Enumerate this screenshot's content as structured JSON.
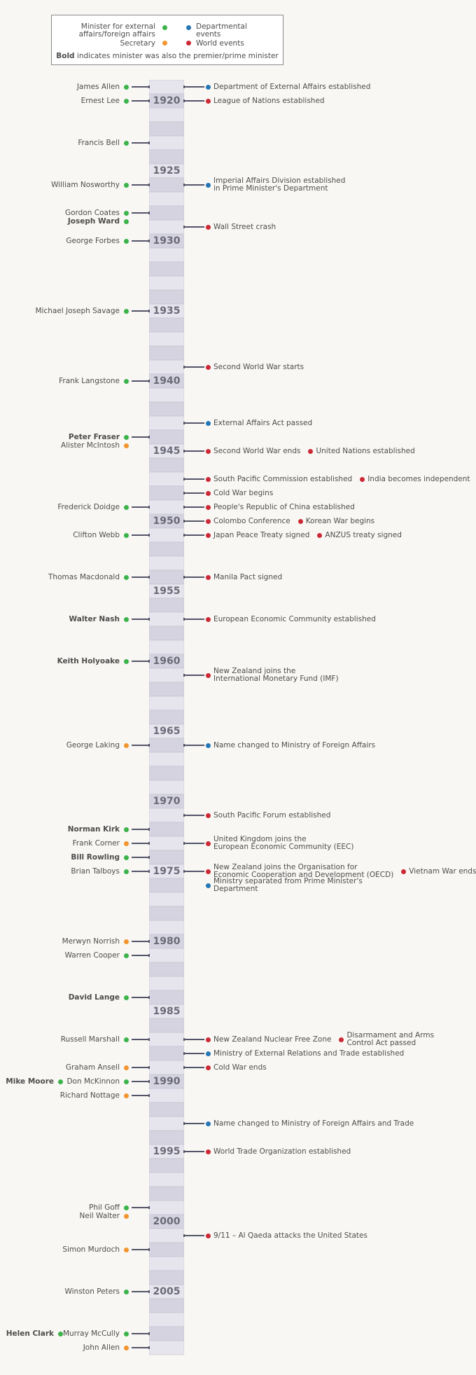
{
  "legend": {
    "minister": "Minister for external affairs/foreign affairs",
    "secretary": "Secretary",
    "departmental": "Departmental events",
    "world": "World events",
    "bold_note_bold": "Bold",
    "bold_note_rest": "indicates minister was also the premier/prime minister"
  },
  "timeline": {
    "start_year": 1919,
    "end_year": 2009,
    "year_labels": [
      "1920",
      "1925",
      "1930",
      "1935",
      "1940",
      "1945",
      "1950",
      "1955",
      "1960",
      "1965",
      "1970",
      "1975",
      "1980",
      "1985",
      "1990",
      "1995",
      "2000",
      "2005"
    ]
  },
  "people": [
    {
      "name": "James Allen",
      "year": 1919,
      "role": "minister",
      "bold": false
    },
    {
      "name": "Ernest Lee",
      "year": 1920,
      "role": "minister",
      "bold": false
    },
    {
      "name": "Francis Bell",
      "year": 1923,
      "role": "minister",
      "bold": false
    },
    {
      "name": "William Nosworthy",
      "year": 1926,
      "role": "minister",
      "bold": false
    },
    {
      "name": "Gordon Coates",
      "year": 1928,
      "role": "minister",
      "bold": false
    },
    {
      "name": "Joseph Ward",
      "year": 1928.6,
      "role": "minister",
      "bold": true
    },
    {
      "name": "George Forbes",
      "year": 1930,
      "role": "minister",
      "bold": false
    },
    {
      "name": "Michael Joseph Savage",
      "year": 1935,
      "role": "minister",
      "bold": false
    },
    {
      "name": "Frank Langstone",
      "year": 1940,
      "role": "minister",
      "bold": false
    },
    {
      "name": "Peter Fraser",
      "year": 1944,
      "role": "minister",
      "bold": true
    },
    {
      "name": "Alister McIntosh",
      "year": 1944.6,
      "role": "secretary",
      "bold": false
    },
    {
      "name": "Frederick Doidge",
      "year": 1949,
      "role": "minister",
      "bold": false
    },
    {
      "name": "Clifton Webb",
      "year": 1951,
      "role": "minister",
      "bold": false
    },
    {
      "name": "Thomas Macdonald",
      "year": 1954,
      "role": "minister",
      "bold": false
    },
    {
      "name": "Walter Nash",
      "year": 1957,
      "role": "minister",
      "bold": true
    },
    {
      "name": "Keith Holyoake",
      "year": 1960,
      "role": "minister",
      "bold": true
    },
    {
      "name": "George Laking",
      "year": 1966,
      "role": "secretary",
      "bold": false
    },
    {
      "name": "Norman Kirk",
      "year": 1972,
      "role": "minister",
      "bold": true
    },
    {
      "name": "Frank Corner",
      "year": 1973,
      "role": "secretary",
      "bold": false
    },
    {
      "name": "Bill Rowling",
      "year": 1974,
      "role": "minister",
      "bold": true
    },
    {
      "name": "Brian Talboys",
      "year": 1975,
      "role": "minister",
      "bold": false
    },
    {
      "name": "Merwyn Norrish",
      "year": 1980,
      "role": "secretary",
      "bold": false
    },
    {
      "name": "Warren Cooper",
      "year": 1981,
      "role": "minister",
      "bold": false
    },
    {
      "name": "David Lange",
      "year": 1984,
      "role": "minister",
      "bold": true
    },
    {
      "name": "Russell Marshall",
      "year": 1987,
      "role": "minister",
      "bold": false
    },
    {
      "name": "Graham Ansell",
      "year": 1989,
      "role": "secretary",
      "bold": false
    },
    {
      "name": "Don McKinnon",
      "year": 1990,
      "role": "minister",
      "bold": false
    },
    {
      "name": "Mike Moore",
      "year": 1990,
      "role": "minister",
      "bold": true,
      "outer": true
    },
    {
      "name": "Richard Nottage",
      "year": 1991,
      "role": "secretary",
      "bold": false
    },
    {
      "name": "Phil Goff",
      "year": 1999,
      "role": "minister",
      "bold": false
    },
    {
      "name": "Neil Walter",
      "year": 1999.6,
      "role": "secretary",
      "bold": false
    },
    {
      "name": "Simon Murdoch",
      "year": 2002,
      "role": "secretary",
      "bold": false
    },
    {
      "name": "Winston Peters",
      "year": 2005,
      "role": "minister",
      "bold": false
    },
    {
      "name": "Murray McCully",
      "year": 2008,
      "role": "minister",
      "bold": false
    },
    {
      "name": "Helen Clark",
      "year": 2008,
      "role": "minister",
      "bold": true,
      "outer": true
    },
    {
      "name": "John Allen",
      "year": 2009,
      "role": "secretary",
      "bold": false
    }
  ],
  "events": [
    {
      "year": 1919,
      "items": [
        {
          "text": "Department of External Affairs established",
          "kind": "departmental"
        }
      ]
    },
    {
      "year": 1920,
      "items": [
        {
          "text": "League of Nations established",
          "kind": "world"
        }
      ]
    },
    {
      "year": 1926,
      "items": [
        {
          "text": "Imperial Affairs Division established\nin Prime Minister's Department",
          "kind": "departmental"
        }
      ]
    },
    {
      "year": 1929,
      "items": [
        {
          "text": "Wall Street crash",
          "kind": "world"
        }
      ]
    },
    {
      "year": 1939,
      "items": [
        {
          "text": "Second World War starts",
          "kind": "world"
        }
      ]
    },
    {
      "year": 1943,
      "items": [
        {
          "text": "External Affairs Act passed",
          "kind": "departmental"
        }
      ]
    },
    {
      "year": 1945,
      "items": [
        {
          "text": "Second World War ends",
          "kind": "world"
        },
        {
          "text": "United Nations established",
          "kind": "world"
        }
      ]
    },
    {
      "year": 1947,
      "items": [
        {
          "text": "South Pacific Commission established",
          "kind": "world"
        },
        {
          "text": "India becomes independent",
          "kind": "world"
        }
      ]
    },
    {
      "year": 1948,
      "items": [
        {
          "text": "Cold War begins",
          "kind": "world"
        }
      ]
    },
    {
      "year": 1949,
      "items": [
        {
          "text": "People's Republic of China established",
          "kind": "world"
        }
      ]
    },
    {
      "year": 1950,
      "items": [
        {
          "text": "Colombo Conference",
          "kind": "world"
        },
        {
          "text": "Korean War begins",
          "kind": "world"
        }
      ]
    },
    {
      "year": 1951,
      "items": [
        {
          "text": "Japan Peace Treaty signed",
          "kind": "world"
        },
        {
          "text": "ANZUS treaty signed",
          "kind": "world"
        }
      ]
    },
    {
      "year": 1954,
      "items": [
        {
          "text": "Manila Pact signed",
          "kind": "world"
        }
      ]
    },
    {
      "year": 1957,
      "items": [
        {
          "text": "European Economic Community established",
          "kind": "world"
        }
      ]
    },
    {
      "year": 1961,
      "items": [
        {
          "text": "New Zealand joins the\nInternational Monetary Fund (IMF)",
          "kind": "world"
        }
      ]
    },
    {
      "year": 1966,
      "items": [
        {
          "text": "Name changed to Ministry of Foreign Affairs",
          "kind": "departmental"
        }
      ]
    },
    {
      "year": 1971,
      "items": [
        {
          "text": "South Pacific Forum established",
          "kind": "world"
        }
      ]
    },
    {
      "year": 1973,
      "items": [
        {
          "text": "United Kingdom joins the\nEuropean Economic Community (EEC)",
          "kind": "world"
        }
      ]
    },
    {
      "year": 1975,
      "items": [
        {
          "text": "New Zealand joins the Organisation for\nEconomic Cooperation and Development (OECD)",
          "kind": "world"
        },
        {
          "text": "Vietnam War ends",
          "kind": "world"
        }
      ]
    },
    {
      "year": 1976,
      "nolink": true,
      "items": [
        {
          "text": "Ministry separated from Prime Minister's\nDepartment",
          "kind": "departmental"
        }
      ]
    },
    {
      "year": 1987,
      "items": [
        {
          "text": "New Zealand Nuclear Free Zone",
          "kind": "world"
        },
        {
          "text": "Disarmament and Arms\nControl Act passed",
          "kind": "world"
        }
      ]
    },
    {
      "year": 1988,
      "items": [
        {
          "text": "Ministry of External Relations and Trade established",
          "kind": "departmental"
        }
      ]
    },
    {
      "year": 1989,
      "items": [
        {
          "text": "Cold War ends",
          "kind": "world"
        }
      ]
    },
    {
      "year": 1993,
      "items": [
        {
          "text": "Name changed to Ministry of Foreign Affairs and Trade",
          "kind": "departmental"
        }
      ]
    },
    {
      "year": 1995,
      "items": [
        {
          "text": "World Trade Organization established",
          "kind": "world"
        }
      ]
    },
    {
      "year": 2001,
      "items": [
        {
          "text": "9/11 – Al Qaeda attacks the United States",
          "kind": "world"
        }
      ]
    }
  ],
  "colors": {
    "minister": "#3bb34a",
    "secretary": "#f2952f",
    "departmental": "#2476b5",
    "world": "#cc2836"
  }
}
